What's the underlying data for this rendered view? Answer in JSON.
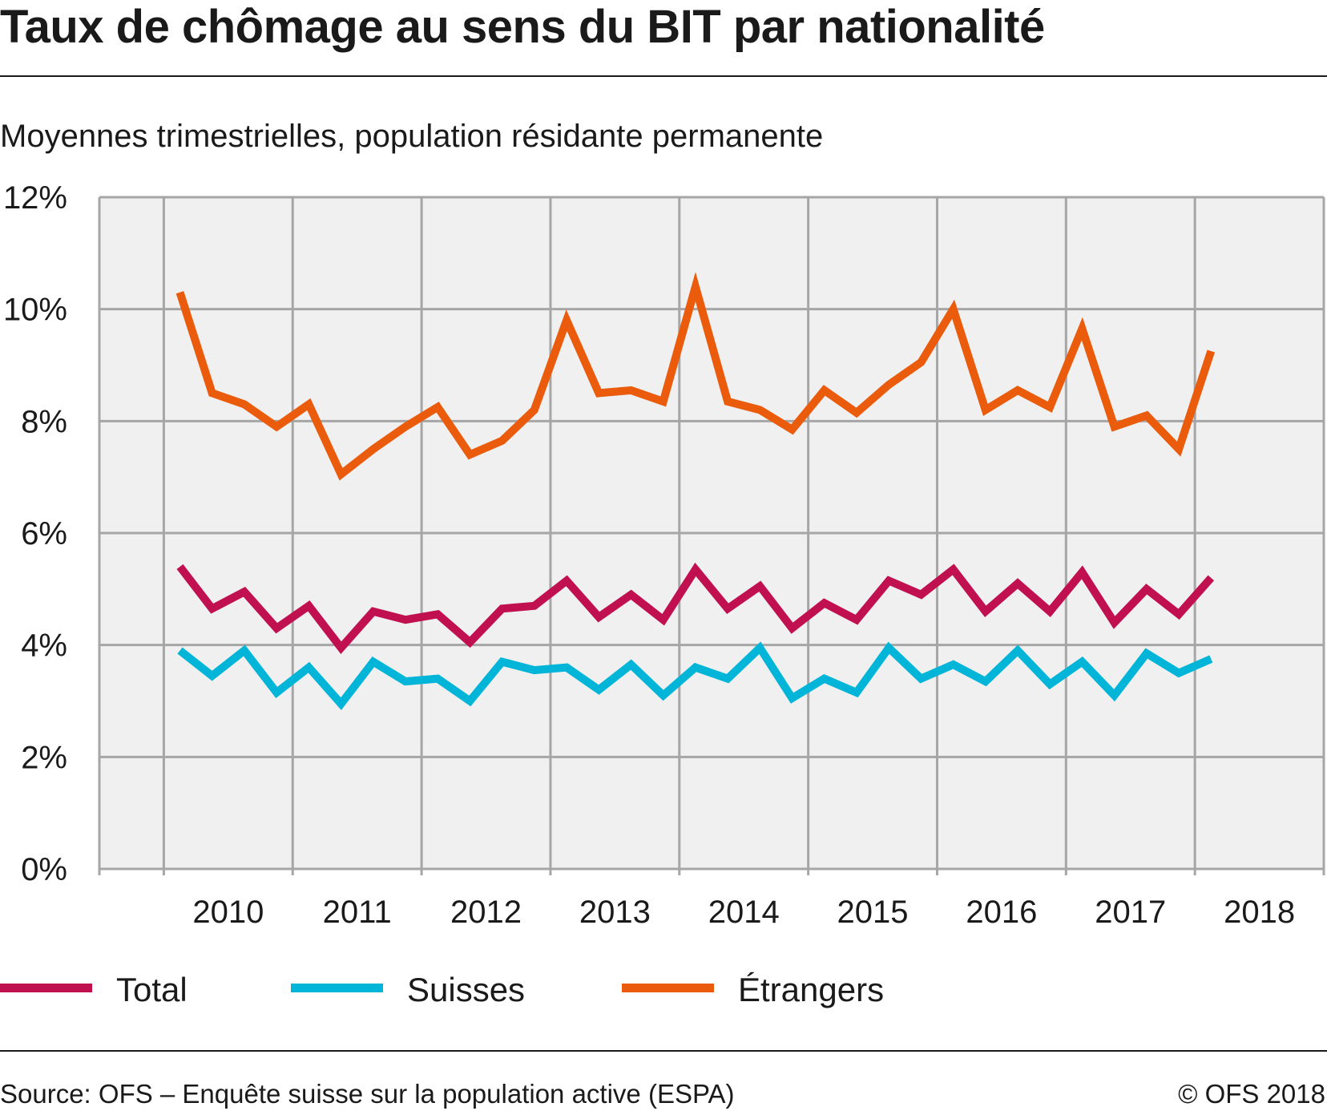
{
  "title": "Taux de chômage au sens du BIT par nationalité",
  "subtitle": "Moyennes trimestrielles, population résidante permanente",
  "source": "Source: OFS – Enquête suisse sur la population active (ESPA)",
  "copyright": "© OFS 2018",
  "colors": {
    "total": "#c0104f",
    "suisses": "#00b5d8",
    "etrangers": "#ea5b0c",
    "plot_bg": "#f0f0f0",
    "grid": "#a6a6a6"
  },
  "chart_data": {
    "type": "line",
    "title": "Taux de chômage au sens du BIT par nationalité",
    "subtitle": "Moyennes trimestrielles, population résidante permanente",
    "ylim": [
      0,
      12
    ],
    "yticks": [
      "0%",
      "2%",
      "4%",
      "6%",
      "8%",
      "10%",
      "12%"
    ],
    "year_labels": [
      "2010",
      "2011",
      "2012",
      "2013",
      "2014",
      "2015",
      "2016",
      "2017",
      "2018"
    ],
    "x": [
      "2010 T1",
      "2010 T2",
      "2010 T3",
      "2010 T4",
      "2011 T1",
      "2011 T2",
      "2011 T3",
      "2011 T4",
      "2012 T1",
      "2012 T2",
      "2012 T3",
      "2012 T4",
      "2013 T1",
      "2013 T2",
      "2013 T3",
      "2013 T4",
      "2014 T1",
      "2014 T2",
      "2014 T3",
      "2014 T4",
      "2015 T1",
      "2015 T2",
      "2015 T3",
      "2015 T4",
      "2016 T1",
      "2016 T2",
      "2016 T3",
      "2016 T4",
      "2017 T1",
      "2017 T2",
      "2017 T3",
      "2017 T4",
      "2018 T1",
      "2018 T2"
    ],
    "grid": true,
    "legend_position": "bottom",
    "series": [
      {
        "key": "total",
        "name": "Total",
        "values": [
          5.4,
          4.65,
          4.95,
          4.3,
          4.7,
          3.95,
          4.6,
          4.45,
          4.55,
          4.05,
          4.65,
          4.7,
          5.15,
          4.5,
          4.9,
          4.45,
          5.35,
          4.65,
          5.05,
          4.3,
          4.75,
          4.45,
          5.15,
          4.9,
          5.35,
          4.6,
          5.1,
          4.6,
          5.3,
          4.4,
          5.0,
          4.55,
          5.2,
          null
        ]
      },
      {
        "key": "suisses",
        "name": "Suisses",
        "values": [
          3.9,
          3.45,
          3.9,
          3.15,
          3.6,
          2.95,
          3.7,
          3.35,
          3.4,
          3.0,
          3.7,
          3.55,
          3.6,
          3.2,
          3.65,
          3.1,
          3.6,
          3.4,
          3.95,
          3.05,
          3.4,
          3.15,
          3.95,
          3.4,
          3.65,
          3.35,
          3.9,
          3.3,
          3.7,
          3.1,
          3.85,
          3.5,
          3.75,
          null
        ]
      },
      {
        "key": "etrangers",
        "name": "Étrangers",
        "values": [
          10.3,
          8.5,
          8.3,
          7.9,
          8.3,
          7.05,
          7.5,
          7.9,
          8.25,
          7.4,
          7.65,
          8.2,
          9.8,
          8.5,
          8.55,
          8.35,
          10.4,
          8.35,
          8.2,
          7.85,
          8.55,
          8.15,
          8.65,
          9.05,
          10.0,
          8.2,
          8.55,
          8.25,
          9.65,
          7.9,
          8.1,
          7.5,
          9.25,
          null
        ]
      }
    ]
  }
}
